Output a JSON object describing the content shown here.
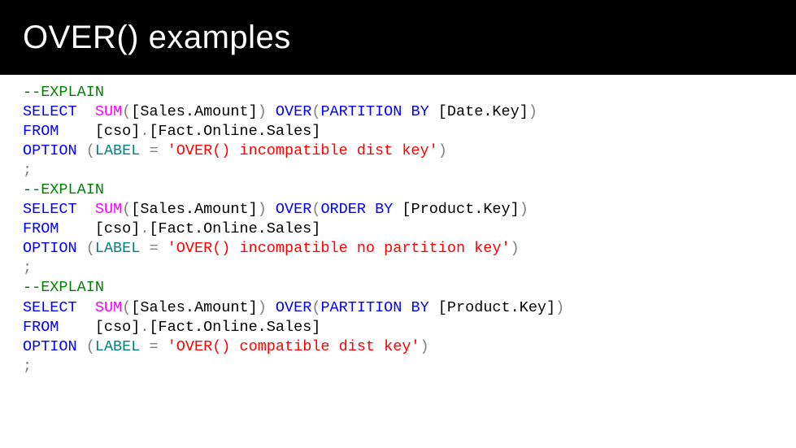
{
  "slide": {
    "title": "OVER() examples"
  },
  "style": {
    "header_bg": "#000000",
    "header_fg": "#ffffff",
    "title_fontsize_pt": 40,
    "title_font": "Segoe UI Light",
    "code_font": "Consolas",
    "code_fontsize_pt": 18.5,
    "colors": {
      "comment": "#008000",
      "keyword": "#0000ff",
      "function": "#ff00ff",
      "string": "#ff0000",
      "gray": "#808080",
      "teal": "#008080",
      "plain": "#000000"
    }
  },
  "code": {
    "lines": [
      [
        {
          "t": "--EXPLAIN",
          "c": "comment"
        }
      ],
      [
        {
          "t": "SELECT",
          "c": "keyword"
        },
        {
          "t": "  ",
          "c": "plain"
        },
        {
          "t": "SUM",
          "c": "func"
        },
        {
          "t": "(",
          "c": "gray"
        },
        {
          "t": "[Sales.Amount]",
          "c": "plain"
        },
        {
          "t": ")",
          "c": "gray"
        },
        {
          "t": " ",
          "c": "plain"
        },
        {
          "t": "OVER",
          "c": "keyword"
        },
        {
          "t": "(",
          "c": "gray"
        },
        {
          "t": "PARTITION",
          "c": "keyword"
        },
        {
          "t": " ",
          "c": "plain"
        },
        {
          "t": "BY",
          "c": "keyword"
        },
        {
          "t": " [Date.Key]",
          "c": "plain"
        },
        {
          "t": ")",
          "c": "gray"
        }
      ],
      [
        {
          "t": "FROM",
          "c": "keyword"
        },
        {
          "t": "    [cso]",
          "c": "plain"
        },
        {
          "t": ".",
          "c": "gray"
        },
        {
          "t": "[Fact.Online.Sales]",
          "c": "plain"
        }
      ],
      [
        {
          "t": "OPTION",
          "c": "keyword"
        },
        {
          "t": " ",
          "c": "plain"
        },
        {
          "t": "(",
          "c": "gray"
        },
        {
          "t": "LABEL",
          "c": "teal"
        },
        {
          "t": " ",
          "c": "plain"
        },
        {
          "t": "=",
          "c": "gray"
        },
        {
          "t": " ",
          "c": "plain"
        },
        {
          "t": "'OVER() incompatible dist key'",
          "c": "string"
        },
        {
          "t": ")",
          "c": "gray"
        }
      ],
      [
        {
          "t": ";",
          "c": "gray"
        }
      ],
      [
        {
          "t": "--EXPLAIN",
          "c": "comment"
        }
      ],
      [
        {
          "t": "SELECT",
          "c": "keyword"
        },
        {
          "t": "  ",
          "c": "plain"
        },
        {
          "t": "SUM",
          "c": "func"
        },
        {
          "t": "(",
          "c": "gray"
        },
        {
          "t": "[Sales.Amount]",
          "c": "plain"
        },
        {
          "t": ")",
          "c": "gray"
        },
        {
          "t": " ",
          "c": "plain"
        },
        {
          "t": "OVER",
          "c": "keyword"
        },
        {
          "t": "(",
          "c": "gray"
        },
        {
          "t": "ORDER",
          "c": "keyword"
        },
        {
          "t": " ",
          "c": "plain"
        },
        {
          "t": "BY",
          "c": "keyword"
        },
        {
          "t": " [Product.Key]",
          "c": "plain"
        },
        {
          "t": ")",
          "c": "gray"
        }
      ],
      [
        {
          "t": "FROM",
          "c": "keyword"
        },
        {
          "t": "    [cso]",
          "c": "plain"
        },
        {
          "t": ".",
          "c": "gray"
        },
        {
          "t": "[Fact.Online.Sales]",
          "c": "plain"
        }
      ],
      [
        {
          "t": "OPTION",
          "c": "keyword"
        },
        {
          "t": " ",
          "c": "plain"
        },
        {
          "t": "(",
          "c": "gray"
        },
        {
          "t": "LABEL",
          "c": "teal"
        },
        {
          "t": " ",
          "c": "plain"
        },
        {
          "t": "=",
          "c": "gray"
        },
        {
          "t": " ",
          "c": "plain"
        },
        {
          "t": "'OVER() incompatible no partition key'",
          "c": "string"
        },
        {
          "t": ")",
          "c": "gray"
        }
      ],
      [
        {
          "t": ";",
          "c": "gray"
        }
      ],
      [
        {
          "t": "--EXPLAIN",
          "c": "comment"
        }
      ],
      [
        {
          "t": "SELECT",
          "c": "keyword"
        },
        {
          "t": "  ",
          "c": "plain"
        },
        {
          "t": "SUM",
          "c": "func"
        },
        {
          "t": "(",
          "c": "gray"
        },
        {
          "t": "[Sales.Amount]",
          "c": "plain"
        },
        {
          "t": ")",
          "c": "gray"
        },
        {
          "t": " ",
          "c": "plain"
        },
        {
          "t": "OVER",
          "c": "keyword"
        },
        {
          "t": "(",
          "c": "gray"
        },
        {
          "t": "PARTITION",
          "c": "keyword"
        },
        {
          "t": " ",
          "c": "plain"
        },
        {
          "t": "BY",
          "c": "keyword"
        },
        {
          "t": " [Product.Key]",
          "c": "plain"
        },
        {
          "t": ")",
          "c": "gray"
        }
      ],
      [
        {
          "t": "FROM",
          "c": "keyword"
        },
        {
          "t": "    [cso]",
          "c": "plain"
        },
        {
          "t": ".",
          "c": "gray"
        },
        {
          "t": "[Fact.Online.Sales]",
          "c": "plain"
        }
      ],
      [
        {
          "t": "OPTION",
          "c": "keyword"
        },
        {
          "t": " ",
          "c": "plain"
        },
        {
          "t": "(",
          "c": "gray"
        },
        {
          "t": "LABEL",
          "c": "teal"
        },
        {
          "t": " ",
          "c": "plain"
        },
        {
          "t": "=",
          "c": "gray"
        },
        {
          "t": " ",
          "c": "plain"
        },
        {
          "t": "'OVER() compatible dist key'",
          "c": "string"
        },
        {
          "t": ")",
          "c": "gray"
        }
      ],
      [
        {
          "t": ";",
          "c": "gray"
        }
      ]
    ]
  }
}
